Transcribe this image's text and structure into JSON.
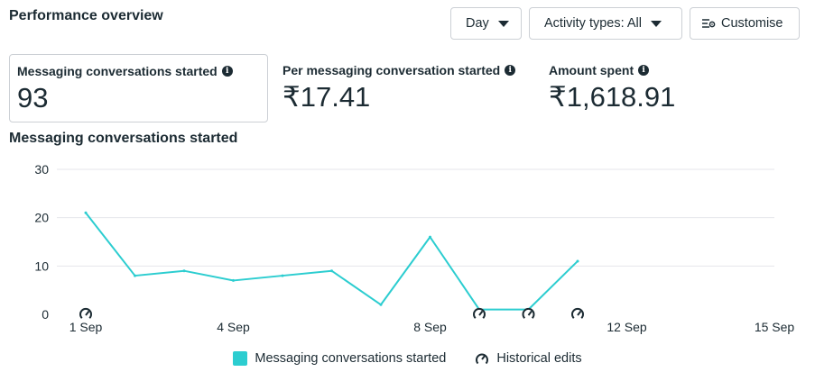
{
  "header": {
    "title": "Performance overview",
    "day_label": "Day",
    "activity_label": "Activity types: All",
    "customise_label": "Customise"
  },
  "metrics": [
    {
      "label": "Messaging conversations started",
      "value": "93",
      "selected": true
    },
    {
      "label": "Per messaging conversation started",
      "value": "₹17.41",
      "selected": false
    },
    {
      "label": "Amount spent",
      "value": "₹1,618.91",
      "selected": false
    }
  ],
  "chart_title": "Messaging conversations started",
  "chart_data": {
    "type": "line",
    "x_ticks": [
      "1 Sep",
      "4 Sep",
      "8 Sep",
      "12 Sep",
      "15 Sep"
    ],
    "x_tick_days": [
      1,
      4,
      8,
      12,
      15
    ],
    "x_range": [
      1,
      15
    ],
    "y_ticks": [
      0,
      10,
      20,
      30
    ],
    "ylim": [
      0,
      30
    ],
    "grid": true,
    "series": [
      {
        "name": "Messaging conversations started",
        "color": "#2ccdd0",
        "x": [
          1,
          2,
          3,
          4,
          5,
          6,
          7,
          8,
          9,
          10,
          11
        ],
        "values": [
          21,
          8,
          9,
          7,
          8,
          9,
          2,
          16,
          1,
          1,
          11
        ]
      }
    ],
    "historical_edit_days": [
      1,
      9,
      10,
      11
    ],
    "legend": [
      {
        "label": "Messaging conversations started",
        "type": "swatch",
        "color": "#2ccdd0"
      },
      {
        "label": "Historical edits",
        "type": "icon",
        "icon": "gauge-icon"
      }
    ],
    "legend_position": "bottom"
  },
  "colors": {
    "accent": "#2ccdd0",
    "grid": "#e4e6eb",
    "text": "#1c2b33"
  }
}
